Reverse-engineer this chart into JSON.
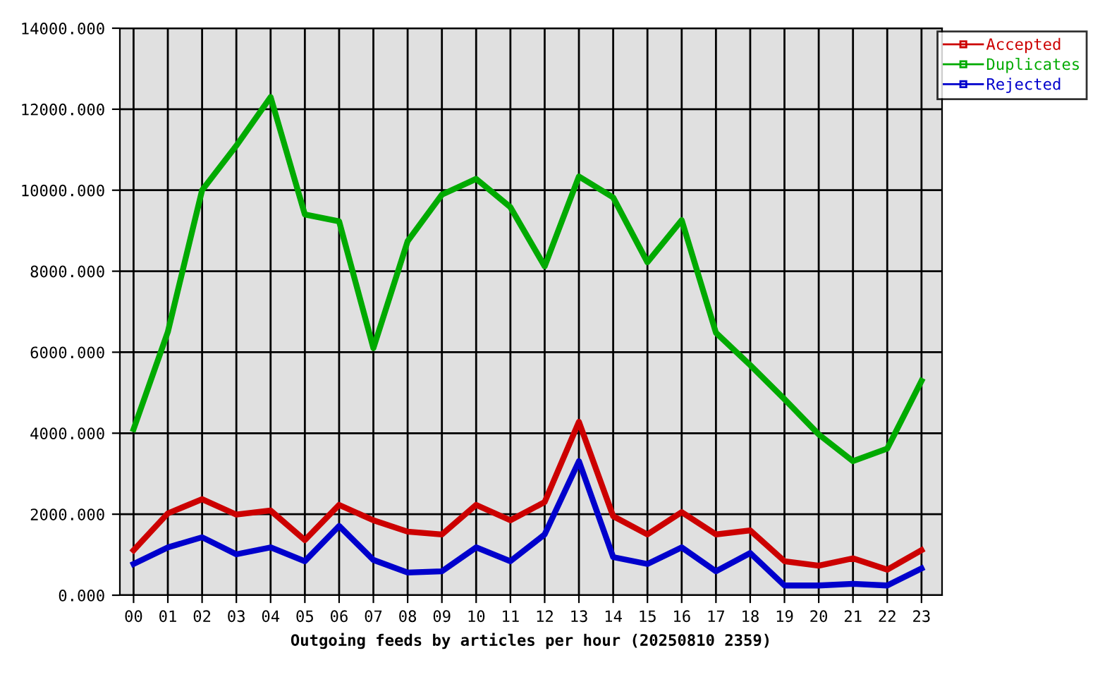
{
  "chart_data": {
    "type": "line",
    "xlabel": "Outgoing feeds by articles per hour (20250810 2359)",
    "categories": [
      "00",
      "01",
      "02",
      "03",
      "04",
      "05",
      "06",
      "07",
      "08",
      "09",
      "10",
      "11",
      "12",
      "13",
      "14",
      "15",
      "16",
      "17",
      "18",
      "19",
      "20",
      "21",
      "22",
      "23"
    ],
    "series": [
      {
        "name": "Accepted",
        "color": "#cc0000",
        "values": [
          1110,
          2020,
          2370,
          1990,
          2090,
          1360,
          2230,
          1850,
          1570,
          1500,
          2230,
          1850,
          2300,
          4280,
          1950,
          1500,
          2050,
          1500,
          1600,
          840,
          730,
          910,
          630,
          1110
        ]
      },
      {
        "name": "Duplicates",
        "color": "#00aa00",
        "values": [
          4100,
          6500,
          10000,
          11100,
          12300,
          9400,
          9230,
          6100,
          8740,
          9890,
          10280,
          9580,
          8120,
          10340,
          9820,
          8220,
          9260,
          6480,
          5680,
          4840,
          3970,
          3310,
          3620,
          5290
        ]
      },
      {
        "name": "Rejected",
        "color": "#0000cc",
        "values": [
          770,
          1180,
          1430,
          1010,
          1180,
          840,
          1710,
          870,
          560,
          590,
          1180,
          840,
          1500,
          3310,
          940,
          770,
          1180,
          590,
          1040,
          240,
          240,
          280,
          240,
          660
        ]
      }
    ],
    "ylim": [
      0,
      14000
    ],
    "yticks": [
      {
        "value": 0,
        "label": "0.000"
      },
      {
        "value": 2000,
        "label": "2000.000"
      },
      {
        "value": 4000,
        "label": "4000.000"
      },
      {
        "value": 6000,
        "label": "6000.000"
      },
      {
        "value": 8000,
        "label": "8000.000"
      },
      {
        "value": 10000,
        "label": "10000.000"
      },
      {
        "value": 12000,
        "label": "12000.000"
      },
      {
        "value": 14000,
        "label": "14000.000"
      }
    ],
    "grid": true,
    "legend": "top right",
    "line_style": "solid"
  }
}
